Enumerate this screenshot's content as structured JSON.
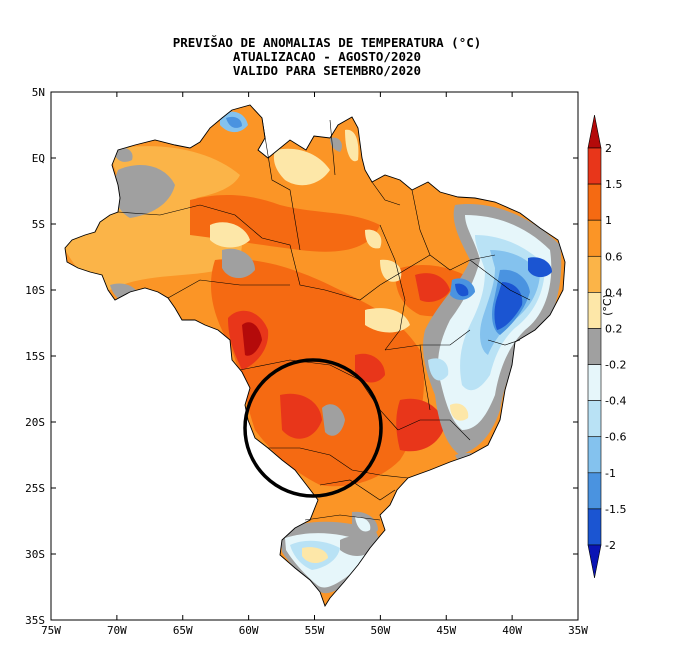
{
  "title": {
    "line1": "PREVIŠAO DE ANOMALIAS DE TEMPERATURA (°C)",
    "line2": "ATUALIZACAO - AGOSTO/2020",
    "line3": "VALIDO PARA SETEMBRO/2020"
  },
  "axes": {
    "lat_ticks": [
      {
        "label": "5N",
        "value": 5
      },
      {
        "label": "EQ",
        "value": 0
      },
      {
        "label": "5S",
        "value": -5
      },
      {
        "label": "10S",
        "value": -10
      },
      {
        "label": "15S",
        "value": -15
      },
      {
        "label": "20S",
        "value": -20
      },
      {
        "label": "25S",
        "value": -25
      },
      {
        "label": "30S",
        "value": -30
      },
      {
        "label": "35S",
        "value": -35
      }
    ],
    "lon_ticks": [
      {
        "label": "75W",
        "value": -75
      },
      {
        "label": "70W",
        "value": -70
      },
      {
        "label": "65W",
        "value": -65
      },
      {
        "label": "60W",
        "value": -60
      },
      {
        "label": "55W",
        "value": -55
      },
      {
        "label": "50W",
        "value": -50
      },
      {
        "label": "45W",
        "value": -45
      },
      {
        "label": "40W",
        "value": -40
      },
      {
        "label": "35W",
        "value": -35
      }
    ],
    "lon_range": [
      -75,
      -35
    ],
    "lat_range": [
      -35,
      5
    ]
  },
  "colorbar": {
    "unit": "(°C)",
    "levels": [
      "2",
      "1.5",
      "1",
      "0.6",
      "0.4",
      "0.2",
      "-0.2",
      "-0.4",
      "-0.6",
      "-1",
      "-1.5",
      "-2"
    ],
    "colors": [
      "#b40a0a",
      "#e8361a",
      "#f56a12",
      "#fb9526",
      "#fbb448",
      "#fde7a8",
      "#a0a0a0",
      "#e6f6fa",
      "#b9e2f5",
      "#84c2ee",
      "#4a93e0",
      "#1b55d2",
      "#0a14b4"
    ]
  },
  "annotation": {
    "shape": "circle",
    "color": "#000000"
  }
}
